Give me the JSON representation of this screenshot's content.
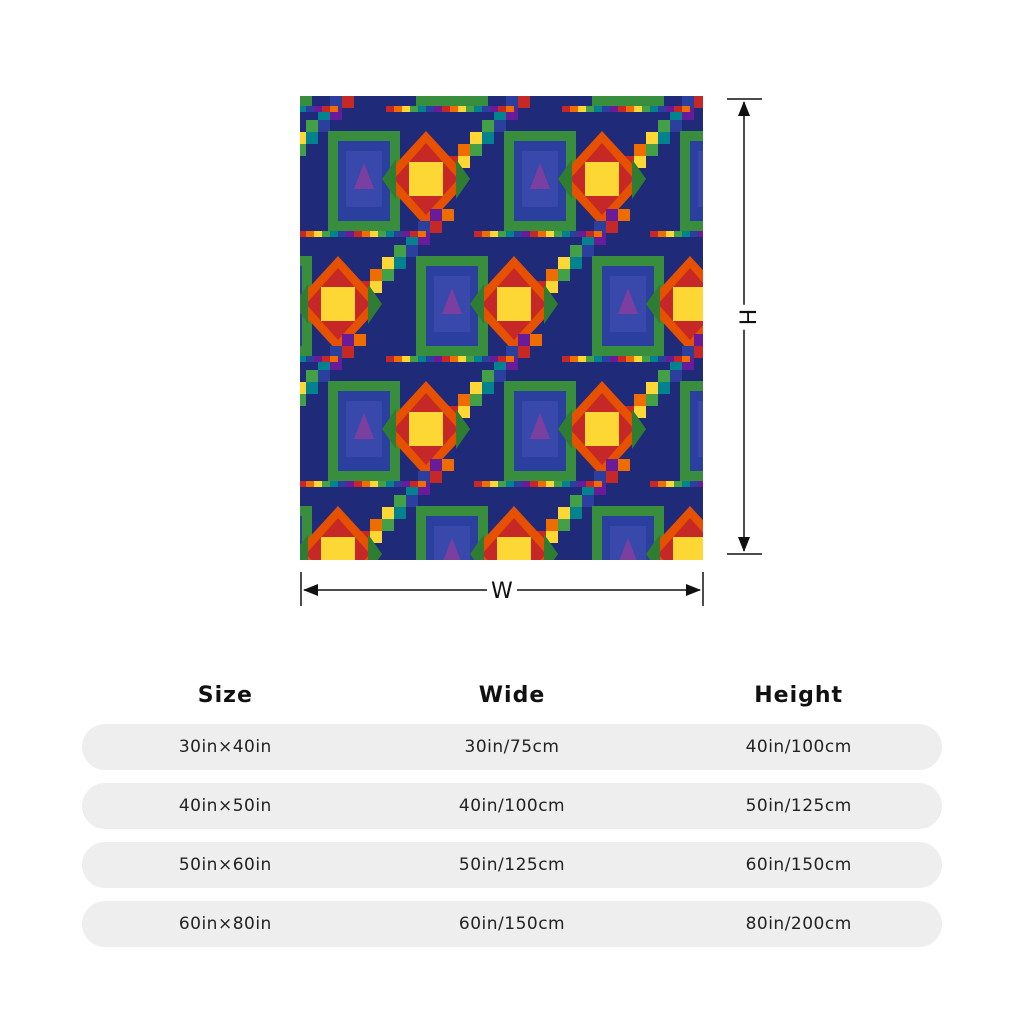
{
  "dimensions": {
    "width_label": "W",
    "height_label": "H"
  },
  "colors": {
    "quilt_palette": [
      "#1f2a78",
      "#2a3f9e",
      "#2e7d32",
      "#43a047",
      "#f9a825",
      "#fdd835",
      "#e65100",
      "#ef6c00",
      "#c62828",
      "#6a1b9a",
      "#7b3fa0",
      "#00838f"
    ]
  },
  "size_table": {
    "headers": {
      "size": "Size",
      "wide": "Wide",
      "height": "Height"
    },
    "rows": [
      {
        "size": "30in×40in",
        "wide": "30in/75cm",
        "height": "40in/100cm"
      },
      {
        "size": "40in×50in",
        "wide": "40in/100cm",
        "height": "50in/125cm"
      },
      {
        "size": "50in×60in",
        "wide": "50in/125cm",
        "height": "60in/150cm"
      },
      {
        "size": "60in×80in",
        "wide": "60in/150cm",
        "height": "80in/200cm"
      }
    ]
  }
}
